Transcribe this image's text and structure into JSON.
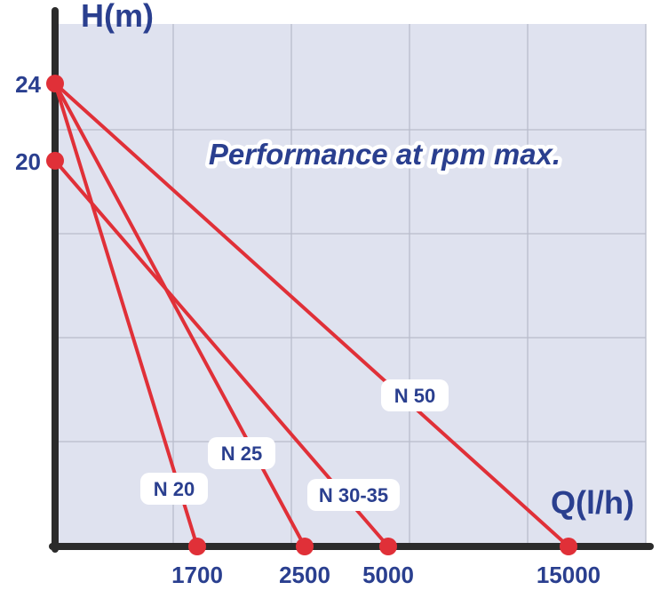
{
  "chart_data": {
    "type": "line",
    "title": "Performance at rpm max.",
    "xlabel": "Q(l/h)",
    "ylabel": "H(m)",
    "x_ticks": [
      "1700",
      "2500",
      "5000",
      "15000"
    ],
    "y_ticks": [
      "20",
      "24"
    ],
    "grid": true,
    "series": [
      {
        "name": "N 20",
        "points": [
          {
            "x": "0",
            "y": 24
          },
          {
            "x": "1700",
            "y": 0
          }
        ]
      },
      {
        "name": "N 25",
        "points": [
          {
            "x": "0",
            "y": 24
          },
          {
            "x": "2500",
            "y": 0
          }
        ]
      },
      {
        "name": "N 30-35",
        "points": [
          {
            "x": "0",
            "y": 20
          },
          {
            "x": "5000",
            "y": 0
          }
        ]
      },
      {
        "name": "N 50",
        "points": [
          {
            "x": "0",
            "y": 24
          },
          {
            "x": "15000",
            "y": 0
          }
        ]
      }
    ],
    "colors": {
      "plot_background": "#dfe2ef",
      "grid": "#b9bccb",
      "axis": "#2b2b2b",
      "line": "#e03038",
      "text": "#2a3f8f"
    }
  }
}
